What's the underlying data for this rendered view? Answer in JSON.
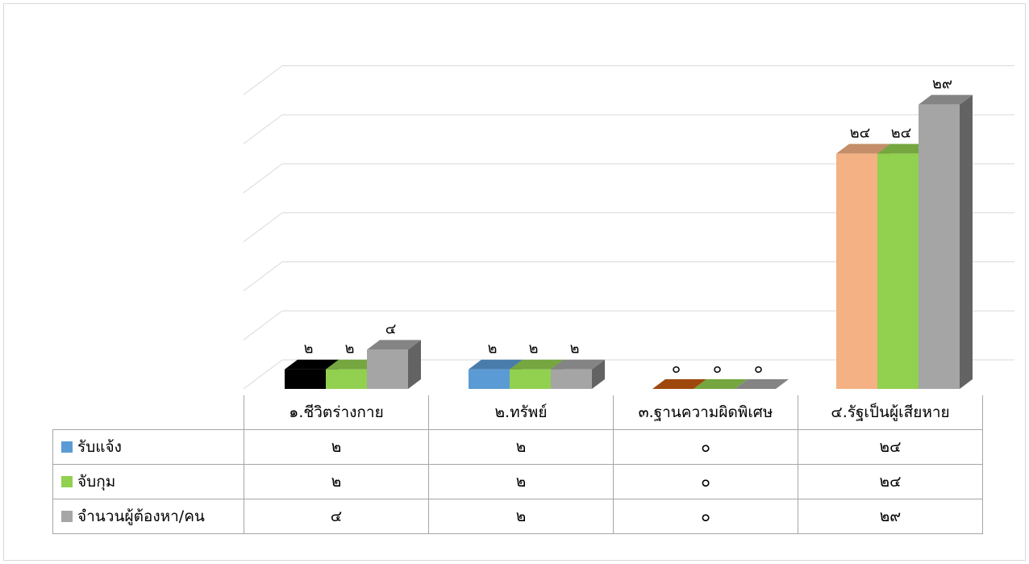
{
  "chart_data": {
    "type": "bar",
    "title": "",
    "xlabel": "",
    "ylabel": "",
    "ylim": [
      0,
      30
    ],
    "gridlines": true,
    "three_d": true,
    "legend_placement": "data-table",
    "categories": [
      "๑.ชีวิตร่างกาย",
      "๒.ทรัพย์",
      "๓.ฐานความผิดพิเศษ",
      "๔.รัฐเป็นผู้เสียหาย"
    ],
    "series": [
      {
        "name": "รับแจ้ง",
        "color": "#5b9bd5",
        "values": [
          2,
          2,
          0,
          24
        ],
        "labels": [
          "๒",
          "๒",
          "๐",
          "๒๔"
        ]
      },
      {
        "name": "จับกุม",
        "color": "#92d050",
        "values": [
          2,
          2,
          0,
          24
        ],
        "labels": [
          "๒",
          "๒",
          "๐",
          "๒๔"
        ]
      },
      {
        "name": "จำนวนผู้ต้องหา/คน",
        "color": "#a5a5a5",
        "values": [
          4,
          2,
          0,
          29
        ],
        "labels": [
          "๔",
          "๒",
          "๐",
          "๒๙"
        ]
      }
    ],
    "point_color_overrides": [
      {
        "series": 0,
        "category": 0,
        "color": "#000000"
      },
      {
        "series": 0,
        "category": 2,
        "color": "#c55a11"
      },
      {
        "series": 0,
        "category": 3,
        "color": "#f4b183"
      }
    ]
  }
}
